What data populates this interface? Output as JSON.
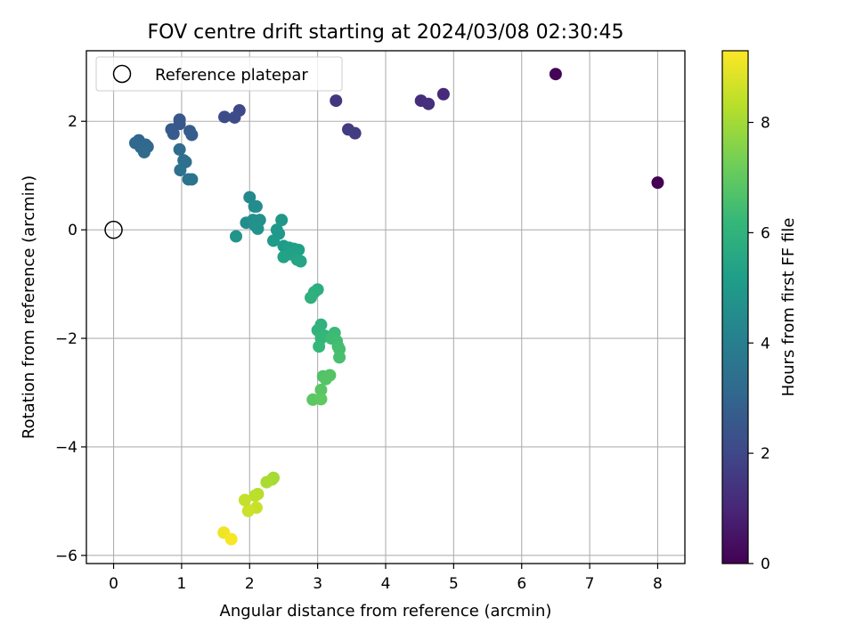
{
  "chart_data": {
    "type": "scatter",
    "title": "FOV centre drift starting at 2024/03/08 02:30:45",
    "xlabel": "Angular distance from reference (arcmin)",
    "ylabel": "Rotation from reference (arcmin)",
    "xlim": [
      -0.4,
      8.4
    ],
    "ylim": [
      -6.15,
      3.3
    ],
    "xticks": [
      0,
      1,
      2,
      3,
      4,
      5,
      6,
      7,
      8
    ],
    "yticks": [
      -6,
      -4,
      -2,
      0,
      2
    ],
    "grid": true,
    "legend": {
      "position": "top-left",
      "entries": [
        "Reference platepar"
      ]
    },
    "reference": {
      "x": 0,
      "y": 0
    },
    "colorbar": {
      "label": "Hours from first FF file",
      "range": [
        0,
        9.3
      ],
      "ticks": [
        0,
        2,
        4,
        6,
        8
      ],
      "colormap": [
        "#440154",
        "#482878",
        "#3e4a89",
        "#31688e",
        "#26828e",
        "#1f9e89",
        "#35b779",
        "#6ece58",
        "#b5de2b",
        "#fde725"
      ]
    },
    "points": [
      {
        "x": 8.0,
        "y": 0.87,
        "h": 0.0
      },
      {
        "x": 6.5,
        "y": 2.87,
        "h": 0.1
      },
      {
        "x": 4.85,
        "y": 2.5,
        "h": 1.1
      },
      {
        "x": 4.52,
        "y": 2.38,
        "h": 1.2
      },
      {
        "x": 4.63,
        "y": 2.32,
        "h": 1.25
      },
      {
        "x": 3.27,
        "y": 2.38,
        "h": 1.5
      },
      {
        "x": 3.45,
        "y": 1.85,
        "h": 1.6
      },
      {
        "x": 3.55,
        "y": 1.78,
        "h": 1.65
      },
      {
        "x": 1.85,
        "y": 2.2,
        "h": 2.0
      },
      {
        "x": 1.63,
        "y": 2.08,
        "h": 2.1
      },
      {
        "x": 1.78,
        "y": 2.07,
        "h": 2.15
      },
      {
        "x": 0.97,
        "y": 2.03,
        "h": 2.5
      },
      {
        "x": 0.97,
        "y": 1.95,
        "h": 2.55
      },
      {
        "x": 0.85,
        "y": 1.85,
        "h": 2.6
      },
      {
        "x": 0.88,
        "y": 1.77,
        "h": 2.65
      },
      {
        "x": 1.12,
        "y": 1.82,
        "h": 2.7
      },
      {
        "x": 1.15,
        "y": 1.75,
        "h": 2.75
      },
      {
        "x": 0.37,
        "y": 1.65,
        "h": 3.0
      },
      {
        "x": 0.32,
        "y": 1.6,
        "h": 3.05
      },
      {
        "x": 0.47,
        "y": 1.57,
        "h": 3.1
      },
      {
        "x": 0.5,
        "y": 1.53,
        "h": 3.1
      },
      {
        "x": 0.4,
        "y": 1.52,
        "h": 3.15
      },
      {
        "x": 0.45,
        "y": 1.43,
        "h": 3.2
      },
      {
        "x": 0.97,
        "y": 1.48,
        "h": 3.3
      },
      {
        "x": 1.03,
        "y": 1.28,
        "h": 3.35
      },
      {
        "x": 1.06,
        "y": 1.25,
        "h": 3.4
      },
      {
        "x": 0.98,
        "y": 1.1,
        "h": 3.45
      },
      {
        "x": 1.1,
        "y": 0.93,
        "h": 3.5
      },
      {
        "x": 1.15,
        "y": 0.93,
        "h": 3.55
      },
      {
        "x": 2.0,
        "y": 0.6,
        "h": 4.4
      },
      {
        "x": 2.07,
        "y": 0.43,
        "h": 4.45
      },
      {
        "x": 2.1,
        "y": 0.43,
        "h": 4.5
      },
      {
        "x": 1.95,
        "y": 0.13,
        "h": 4.55
      },
      {
        "x": 2.05,
        "y": 0.18,
        "h": 4.6
      },
      {
        "x": 2.15,
        "y": 0.18,
        "h": 4.65
      },
      {
        "x": 2.08,
        "y": 0.08,
        "h": 4.7
      },
      {
        "x": 2.12,
        "y": 0.02,
        "h": 4.75
      },
      {
        "x": 1.8,
        "y": -0.12,
        "h": 4.8
      },
      {
        "x": 2.47,
        "y": 0.18,
        "h": 4.9
      },
      {
        "x": 2.4,
        "y": 0.0,
        "h": 4.95
      },
      {
        "x": 2.43,
        "y": -0.07,
        "h": 5.0
      },
      {
        "x": 2.35,
        "y": -0.2,
        "h": 5.05
      },
      {
        "x": 2.5,
        "y": -0.3,
        "h": 5.1
      },
      {
        "x": 2.58,
        "y": -0.33,
        "h": 5.15
      },
      {
        "x": 2.65,
        "y": -0.35,
        "h": 5.2
      },
      {
        "x": 2.72,
        "y": -0.37,
        "h": 5.25
      },
      {
        "x": 2.6,
        "y": -0.45,
        "h": 5.3
      },
      {
        "x": 2.5,
        "y": -0.5,
        "h": 5.35
      },
      {
        "x": 2.7,
        "y": -0.55,
        "h": 5.4
      },
      {
        "x": 2.75,
        "y": -0.58,
        "h": 5.45
      },
      {
        "x": 3.0,
        "y": -1.1,
        "h": 5.8
      },
      {
        "x": 2.95,
        "y": -1.15,
        "h": 5.85
      },
      {
        "x": 2.9,
        "y": -1.25,
        "h": 5.9
      },
      {
        "x": 3.05,
        "y": -1.75,
        "h": 6.0
      },
      {
        "x": 3.0,
        "y": -1.85,
        "h": 6.05
      },
      {
        "x": 3.1,
        "y": -1.95,
        "h": 6.1
      },
      {
        "x": 3.05,
        "y": -2.0,
        "h": 6.15
      },
      {
        "x": 3.02,
        "y": -2.15,
        "h": 6.2
      },
      {
        "x": 3.25,
        "y": -1.9,
        "h": 6.3
      },
      {
        "x": 3.2,
        "y": -2.0,
        "h": 6.35
      },
      {
        "x": 3.28,
        "y": -2.05,
        "h": 6.4
      },
      {
        "x": 3.3,
        "y": -2.15,
        "h": 6.45
      },
      {
        "x": 3.32,
        "y": -2.2,
        "h": 6.5
      },
      {
        "x": 3.32,
        "y": -2.35,
        "h": 6.55
      },
      {
        "x": 3.08,
        "y": -2.7,
        "h": 6.7
      },
      {
        "x": 3.18,
        "y": -2.68,
        "h": 6.75
      },
      {
        "x": 3.12,
        "y": -2.75,
        "h": 6.8
      },
      {
        "x": 3.05,
        "y": -2.95,
        "h": 6.85
      },
      {
        "x": 2.93,
        "y": -3.13,
        "h": 6.9
      },
      {
        "x": 3.05,
        "y": -3.12,
        "h": 6.95
      },
      {
        "x": 2.35,
        "y": -4.57,
        "h": 8.0
      },
      {
        "x": 2.33,
        "y": -4.6,
        "h": 8.05
      },
      {
        "x": 2.25,
        "y": -4.65,
        "h": 8.1
      },
      {
        "x": 2.12,
        "y": -4.87,
        "h": 8.3
      },
      {
        "x": 2.08,
        "y": -4.9,
        "h": 8.35
      },
      {
        "x": 1.93,
        "y": -4.98,
        "h": 8.5
      },
      {
        "x": 2.1,
        "y": -5.12,
        "h": 8.55
      },
      {
        "x": 1.98,
        "y": -5.18,
        "h": 8.6
      },
      {
        "x": 1.62,
        "y": -5.58,
        "h": 9.1
      },
      {
        "x": 1.73,
        "y": -5.7,
        "h": 9.2
      }
    ]
  }
}
